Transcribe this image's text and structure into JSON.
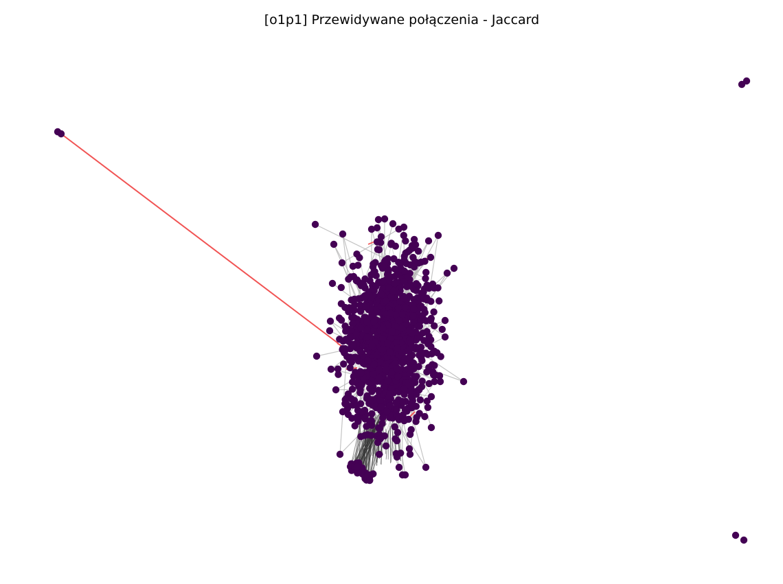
{
  "figure": {
    "title": "[o1p1] Przewidywane połączenia - Jaccard"
  },
  "colors": {
    "node": "#440154",
    "edge_existing": "#b0b0b0",
    "edge_dense": "#333333",
    "edge_predicted": "#f04a4a",
    "background": "#ffffff"
  },
  "chart_data": {
    "type": "network",
    "title": "[o1p1] Przewidywane połączenia - Jaccard",
    "grid": false,
    "legend": "none",
    "node_count_estimate": 1400,
    "components": [
      {
        "name": "main",
        "node_count_estimate": 1390
      },
      {
        "name": "pair",
        "node_count": 2
      },
      {
        "name": "pair",
        "node_count": 2
      },
      {
        "name": "pair",
        "node_count": 2
      }
    ],
    "predicted_edges_estimate": 12
  }
}
